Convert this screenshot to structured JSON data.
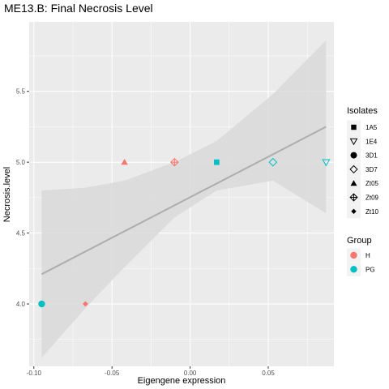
{
  "chart_data": {
    "type": "scatter",
    "title": "ME13.B: Final Necrosis Level",
    "xlabel": "Eigengene expression",
    "ylabel": "Necrosis.level",
    "xlim": [
      -0.103,
      0.092
    ],
    "ylim": [
      3.56,
      5.99
    ],
    "x_ticks": [
      -0.1,
      -0.05,
      0.0,
      0.05
    ],
    "x_tick_labels": [
      "-0.10",
      "-0.05",
      "0.00",
      "0.05"
    ],
    "y_ticks": [
      4.0,
      4.5,
      5.0,
      5.5
    ],
    "y_tick_labels": [
      "4.0",
      "4.5",
      "5.0",
      "5.5"
    ],
    "grid": true,
    "points": [
      {
        "isolate": "3D1",
        "group": "PG",
        "x": -0.095,
        "y": 4.0
      },
      {
        "isolate": "Zt10",
        "group": "H",
        "x": -0.067,
        "y": 4.0
      },
      {
        "isolate": "Zt05",
        "group": "H",
        "x": -0.042,
        "y": 5.0
      },
      {
        "isolate": "Zt09",
        "group": "H",
        "x": -0.01,
        "y": 5.0
      },
      {
        "isolate": "1A5",
        "group": "PG",
        "x": 0.017,
        "y": 5.0
      },
      {
        "isolate": "3D7",
        "group": "PG",
        "x": 0.053,
        "y": 5.0
      },
      {
        "isolate": "1E4",
        "group": "PG",
        "x": 0.087,
        "y": 5.0
      }
    ],
    "fit": {
      "x": [
        -0.095,
        0.087
      ],
      "y": [
        4.21,
        5.25
      ]
    },
    "ci": {
      "x": [
        -0.095,
        -0.067,
        -0.042,
        -0.01,
        0.017,
        0.053,
        0.087
      ],
      "upper": [
        4.8,
        4.82,
        4.87,
        5.0,
        5.15,
        5.48,
        5.86
      ],
      "lower": [
        3.62,
        3.97,
        4.26,
        4.61,
        4.8,
        4.87,
        4.64
      ]
    },
    "legends": [
      {
        "title": "Isolates",
        "items": [
          {
            "label": "1A5",
            "shape": "square-filled"
          },
          {
            "label": "1E4",
            "shape": "triangle-down-open"
          },
          {
            "label": "3D1",
            "shape": "circle-filled"
          },
          {
            "label": "3D7",
            "shape": "diamond-open"
          },
          {
            "label": "Zt05",
            "shape": "triangle-filled"
          },
          {
            "label": "Zt09",
            "shape": "diamond-plus"
          },
          {
            "label": "Zt10",
            "shape": "diamond-filled"
          }
        ]
      },
      {
        "title": "Group",
        "items": [
          {
            "label": "H",
            "color": "#F8766D"
          },
          {
            "label": "PG",
            "color": "#00BFC4"
          }
        ]
      }
    ],
    "colors": {
      "H": "#F8766D",
      "PG": "#00BFC4",
      "panel": "#EBEBEB",
      "ribbon": "#D9D9D9",
      "fit_line": "#ADADAD"
    }
  }
}
